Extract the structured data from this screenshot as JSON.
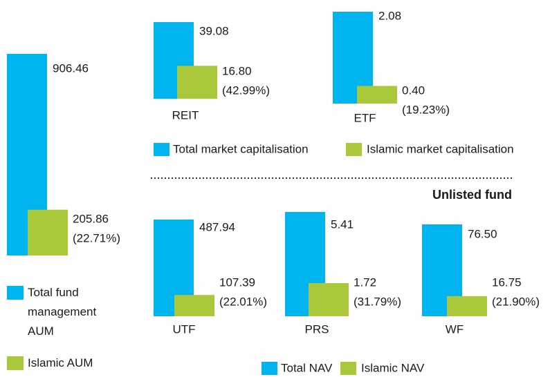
{
  "chart_data": [
    {
      "type": "bar",
      "series": [
        {
          "name": "Total fund management AUM",
          "color": "#00b4f0",
          "values": [
            906.46
          ],
          "value_labels": [
            "906.46"
          ]
        },
        {
          "name": "Islamic AUM",
          "color": "#a9c83b",
          "values": [
            205.86
          ],
          "value_labels": [
            "205.86"
          ],
          "percent": [
            22.71
          ],
          "percent_labels": [
            "(22.71%)"
          ]
        }
      ]
    },
    {
      "type": "bar",
      "categories": [
        "REIT",
        "ETF"
      ],
      "series": [
        {
          "name": "Total market capitalisation",
          "color": "#00b4f0",
          "values": [
            39.08,
            2.08
          ],
          "value_labels": [
            "39.08",
            "2.08"
          ]
        },
        {
          "name": "Islamic market capitalisation",
          "color": "#a9c83b",
          "values": [
            16.8,
            0.4
          ],
          "value_labels": [
            "16.80",
            "0.40"
          ],
          "percent": [
            42.99,
            19.23
          ],
          "percent_labels": [
            "(42.99%)",
            "(19.23%)"
          ]
        }
      ]
    },
    {
      "type": "bar",
      "title": "Unlisted fund",
      "categories": [
        "UTF",
        "PRS",
        "WF"
      ],
      "series": [
        {
          "name": "Total NAV",
          "color": "#00b4f0",
          "values": [
            487.94,
            5.41,
            76.5
          ],
          "value_labels": [
            "487.94",
            "5.41",
            "76.50"
          ]
        },
        {
          "name": "Islamic NAV",
          "color": "#a9c83b",
          "values": [
            107.39,
            1.72,
            16.75
          ],
          "value_labels": [
            "107.39",
            "1.72",
            "16.75"
          ],
          "percent": [
            22.01,
            31.79,
            21.9
          ],
          "percent_labels": [
            "(22.01%)",
            "(31.79%)",
            "(21.90%)"
          ]
        }
      ]
    }
  ]
}
